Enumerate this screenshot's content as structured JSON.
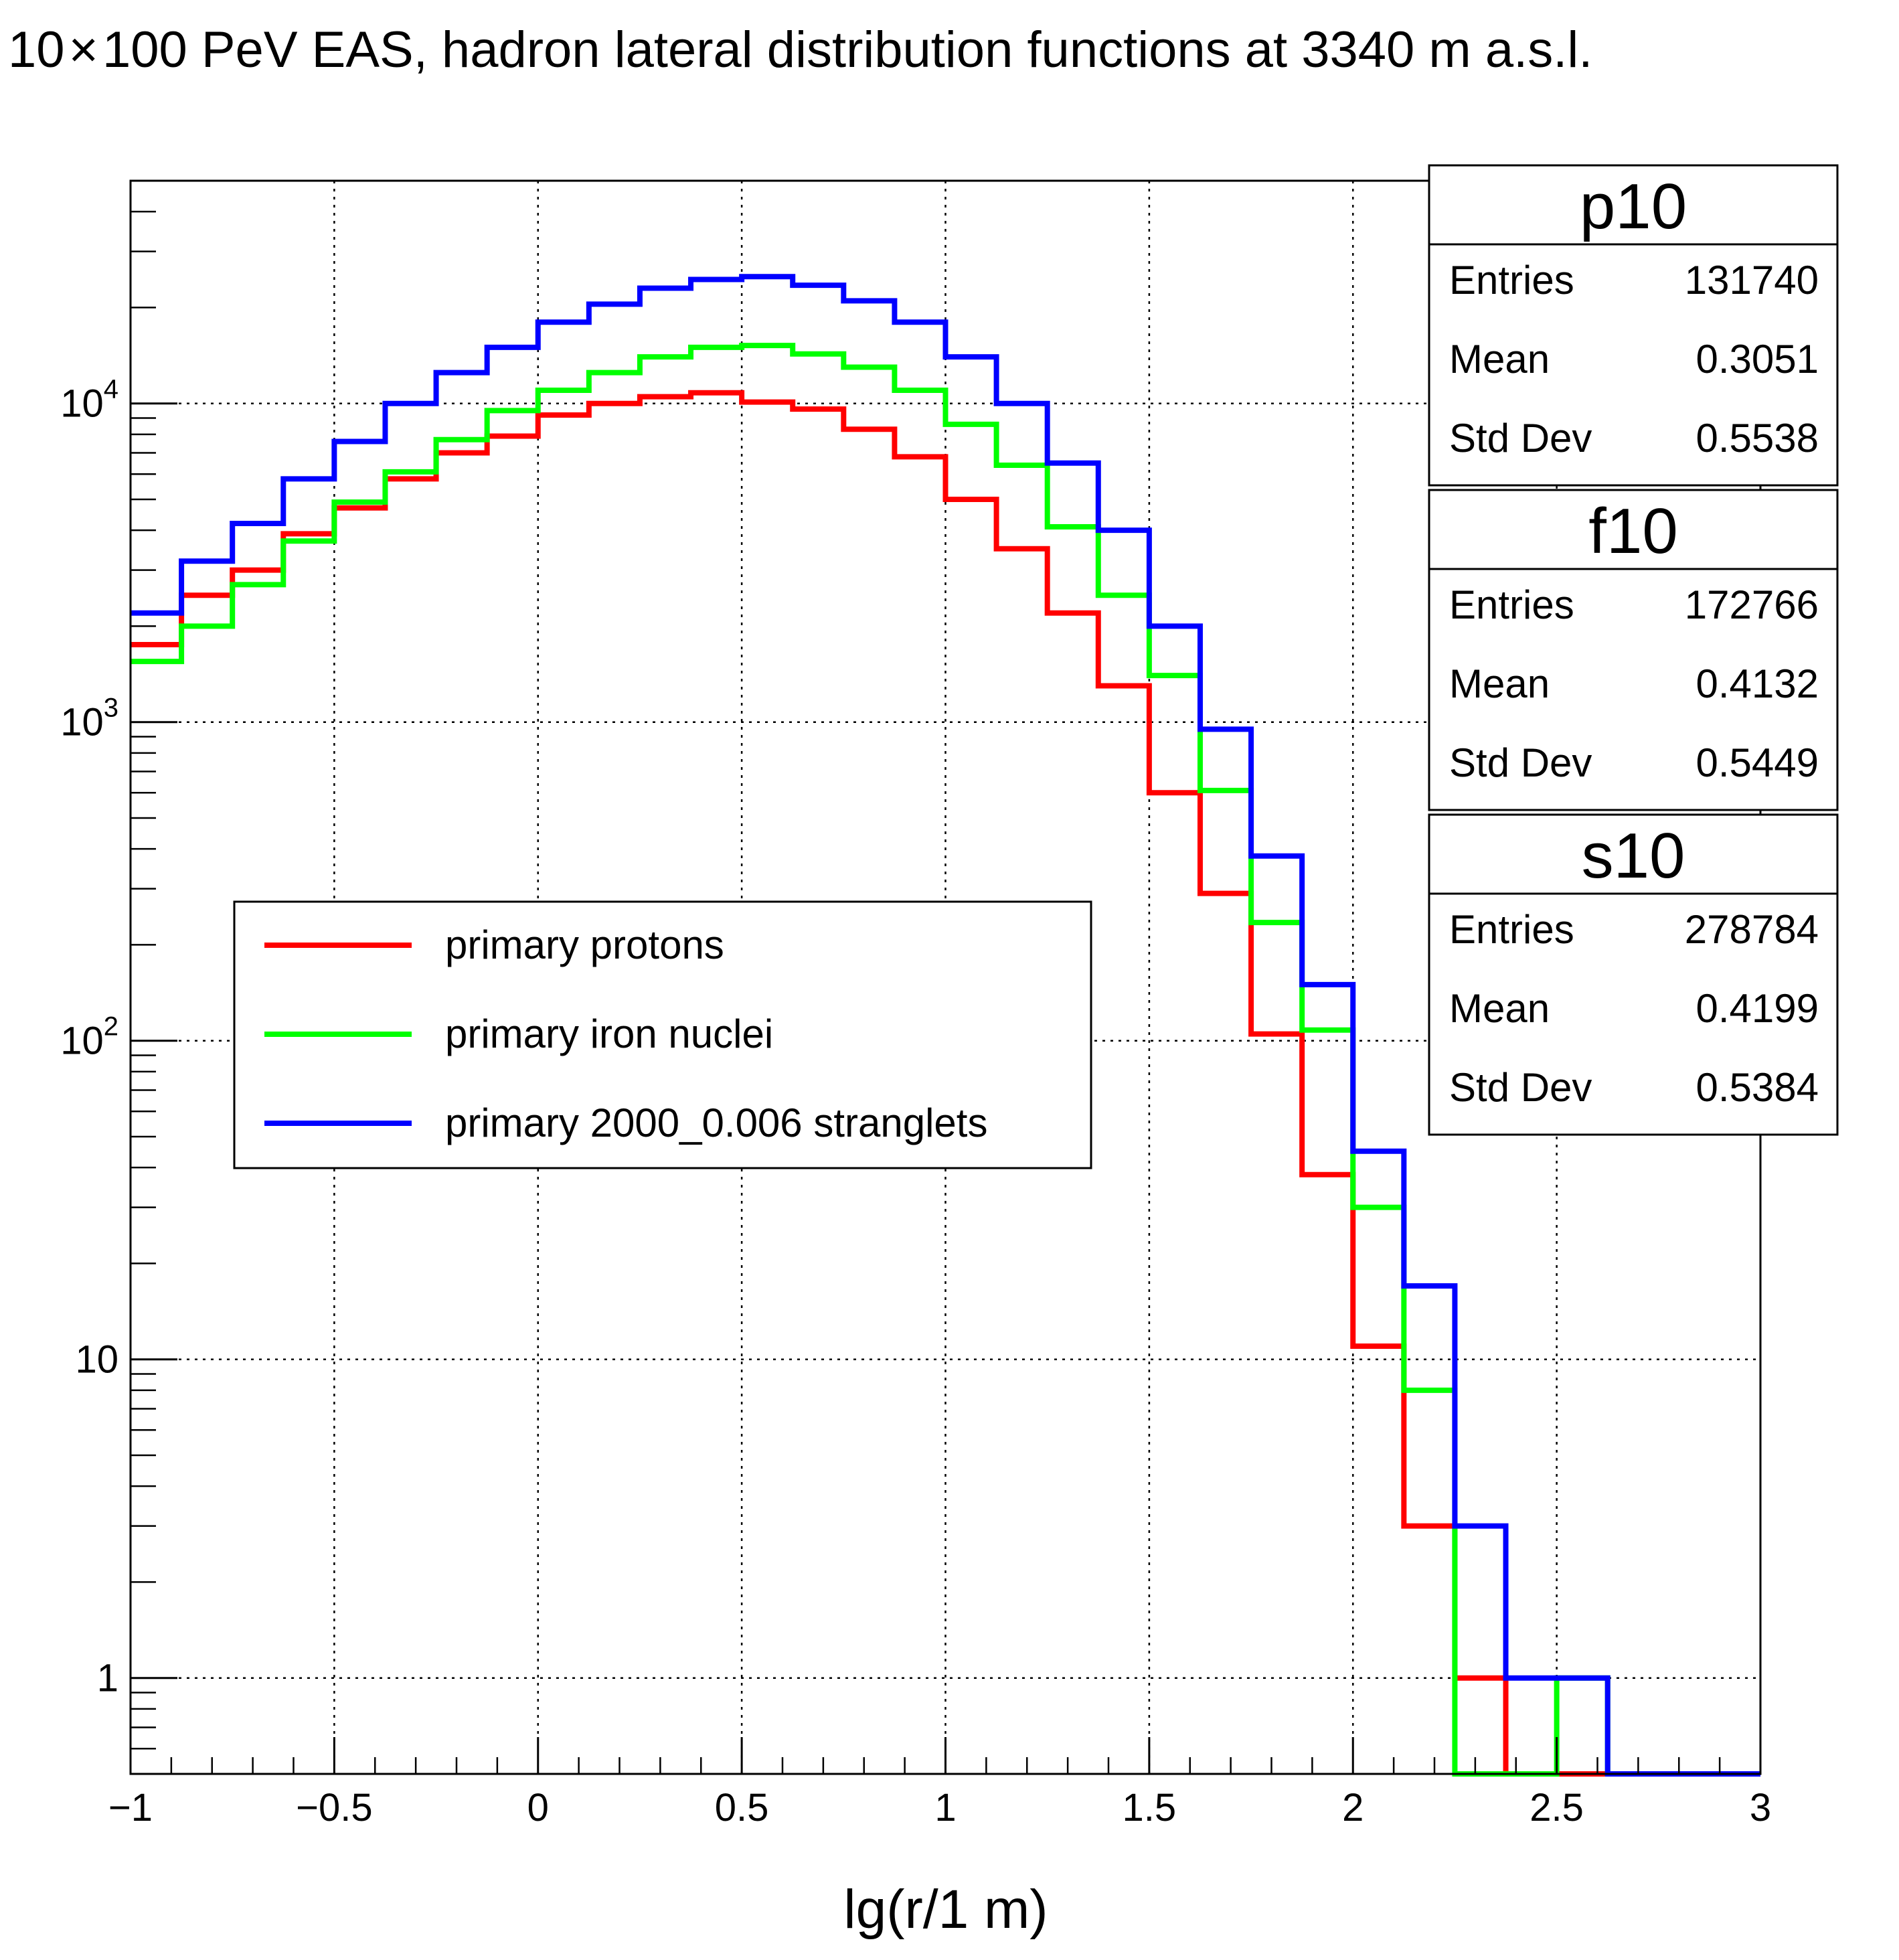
{
  "chart_data": {
    "type": "histogram-step",
    "title_prefix": "10",
    "title_times": "×",
    "title_suffix": "100 PeV EAS, hadron lateral distribution functions at 3340 m a.s.l.",
    "xlabel": "lg(r/1 m)",
    "ylabel": "",
    "xlim": [
      -1,
      3
    ],
    "ylim": [
      0.5,
      50000
    ],
    "yscale": "log",
    "grid": true,
    "x_ticks": [
      {
        "value": -1,
        "label": "−1"
      },
      {
        "value": -0.5,
        "label": "−0.5"
      },
      {
        "value": 0,
        "label": "0"
      },
      {
        "value": 0.5,
        "label": "0.5"
      },
      {
        "value": 1,
        "label": "1"
      },
      {
        "value": 1.5,
        "label": "1.5"
      },
      {
        "value": 2,
        "label": "2"
      },
      {
        "value": 2.5,
        "label": "2.5"
      },
      {
        "value": 3,
        "label": "3"
      }
    ],
    "y_ticks": [
      {
        "value": 1,
        "base": "1",
        "exp": ""
      },
      {
        "value": 10,
        "base": "10",
        "exp": ""
      },
      {
        "value": 100,
        "base": "10",
        "exp": "2"
      },
      {
        "value": 1000,
        "base": "10",
        "exp": "3"
      },
      {
        "value": 10000,
        "base": "10",
        "exp": "4"
      }
    ],
    "bin_edges": [
      -1,
      -0.875,
      -0.75,
      -0.625,
      -0.5,
      -0.375,
      -0.25,
      -0.125,
      0,
      0.125,
      0.25,
      0.375,
      0.5,
      0.625,
      0.75,
      0.875,
      1,
      1.125,
      1.25,
      1.375,
      1.5,
      1.625,
      1.75,
      1.875,
      2,
      2.125,
      2.25,
      2.375,
      2.5,
      2.625,
      2.75,
      2.875,
      3
    ],
    "series": [
      {
        "name": "primary protons",
        "color": "#ff0000",
        "values": [
          1750,
          2500,
          3000,
          3900,
          4700,
          5800,
          7000,
          7900,
          9200,
          10000,
          10500,
          10800,
          10100,
          9600,
          8300,
          6800,
          5000,
          3500,
          2200,
          1300,
          600,
          290,
          105,
          38,
          11,
          3,
          1,
          0,
          0,
          0,
          0,
          0
        ]
      },
      {
        "name": "primary iron nuclei",
        "color": "#00ff00",
        "values": [
          1550,
          2000,
          2700,
          3700,
          4900,
          6100,
          7700,
          9500,
          11000,
          12500,
          14000,
          15000,
          15200,
          14300,
          13000,
          11000,
          8600,
          6400,
          4100,
          2500,
          1400,
          610,
          235,
          108,
          30,
          8,
          0,
          0,
          1,
          0,
          0,
          0
        ]
      },
      {
        "name": "primary 2000_0.006 stranglets",
        "color": "#0000ff",
        "values": [
          2200,
          3200,
          4200,
          5800,
          7600,
          10000,
          12500,
          15000,
          18000,
          20500,
          23000,
          24500,
          25000,
          23500,
          21000,
          18000,
          14000,
          10000,
          6500,
          4000,
          2000,
          950,
          380,
          150,
          45,
          17,
          3,
          1,
          1,
          0,
          0,
          0
        ]
      }
    ],
    "legend": {
      "placement": "center-left",
      "entries": [
        "primary protons",
        "primary iron nuclei",
        "primary 2000_0.006 stranglets"
      ]
    },
    "stat_boxes": [
      {
        "name": "p10",
        "rows": [
          {
            "label": "Entries",
            "value": "131740"
          },
          {
            "label": "Mean",
            "value": "0.3051"
          },
          {
            "label": "Std Dev",
            "value": "0.5538"
          }
        ]
      },
      {
        "name": "f10",
        "rows": [
          {
            "label": "Entries",
            "value": "172766"
          },
          {
            "label": "Mean",
            "value": "0.4132"
          },
          {
            "label": "Std Dev",
            "value": "0.5449"
          }
        ]
      },
      {
        "name": "s10",
        "rows": [
          {
            "label": "Entries",
            "value": "278784"
          },
          {
            "label": "Mean",
            "value": "0.4199"
          },
          {
            "label": "Std Dev",
            "value": "0.5384"
          }
        ]
      }
    ]
  }
}
